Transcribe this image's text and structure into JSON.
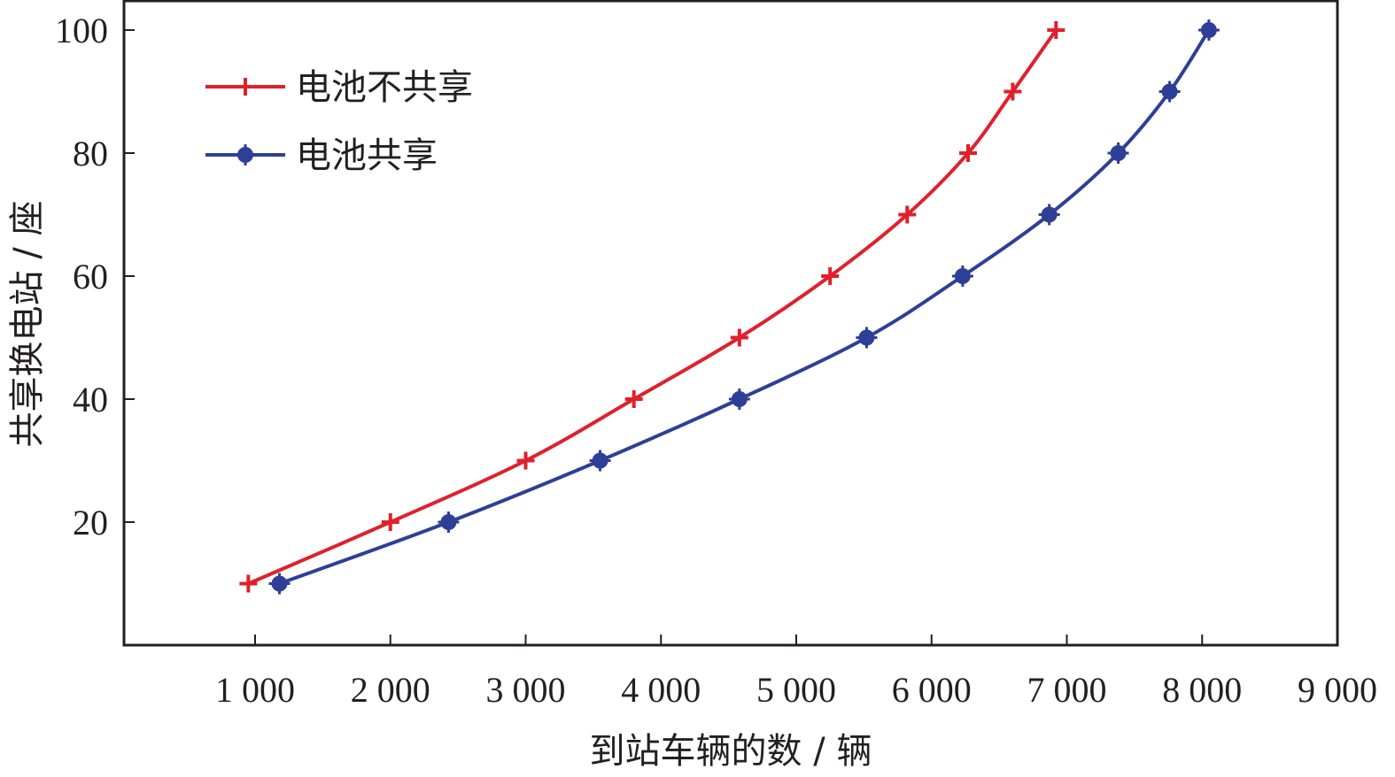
{
  "chart_data": {
    "type": "line",
    "xlabel": "到站车辆的数 / 辆",
    "ylabel": "共享换电站 / 座",
    "xlim": [
      0,
      9000
    ],
    "ylim": [
      0,
      105
    ],
    "x_ticks": [
      1000,
      2000,
      3000,
      4000,
      5000,
      6000,
      7000,
      8000,
      9000
    ],
    "x_tick_labels": [
      "1 000",
      "2 000",
      "3 000",
      "4 000",
      "5 000",
      "6 000",
      "7 000",
      "8 000",
      "9 000"
    ],
    "y_ticks": [
      20,
      40,
      60,
      80,
      100
    ],
    "y_tick_labels": [
      "20",
      "40",
      "60",
      "80",
      "100"
    ],
    "grid": false,
    "legend_position": "top-left",
    "series": [
      {
        "name": "电池不共享",
        "color": "#e0202b",
        "marker": "plus",
        "points": [
          {
            "x": 950,
            "y": 10
          },
          {
            "x": 2000,
            "y": 20
          },
          {
            "x": 3000,
            "y": 30
          },
          {
            "x": 3800,
            "y": 40
          },
          {
            "x": 4580,
            "y": 50
          },
          {
            "x": 5250,
            "y": 60
          },
          {
            "x": 5820,
            "y": 70
          },
          {
            "x": 6270,
            "y": 80
          },
          {
            "x": 6600,
            "y": 90
          },
          {
            "x": 6920,
            "y": 100
          }
        ]
      },
      {
        "name": "电池共享",
        "color": "#2e3f98",
        "marker": "dot",
        "points": [
          {
            "x": 1180,
            "y": 10
          },
          {
            "x": 2430,
            "y": 20
          },
          {
            "x": 3550,
            "y": 30
          },
          {
            "x": 4580,
            "y": 40
          },
          {
            "x": 5520,
            "y": 50
          },
          {
            "x": 6230,
            "y": 60
          },
          {
            "x": 6870,
            "y": 70
          },
          {
            "x": 7380,
            "y": 80
          },
          {
            "x": 7760,
            "y": 90
          },
          {
            "x": 8050,
            "y": 100
          }
        ]
      }
    ]
  }
}
